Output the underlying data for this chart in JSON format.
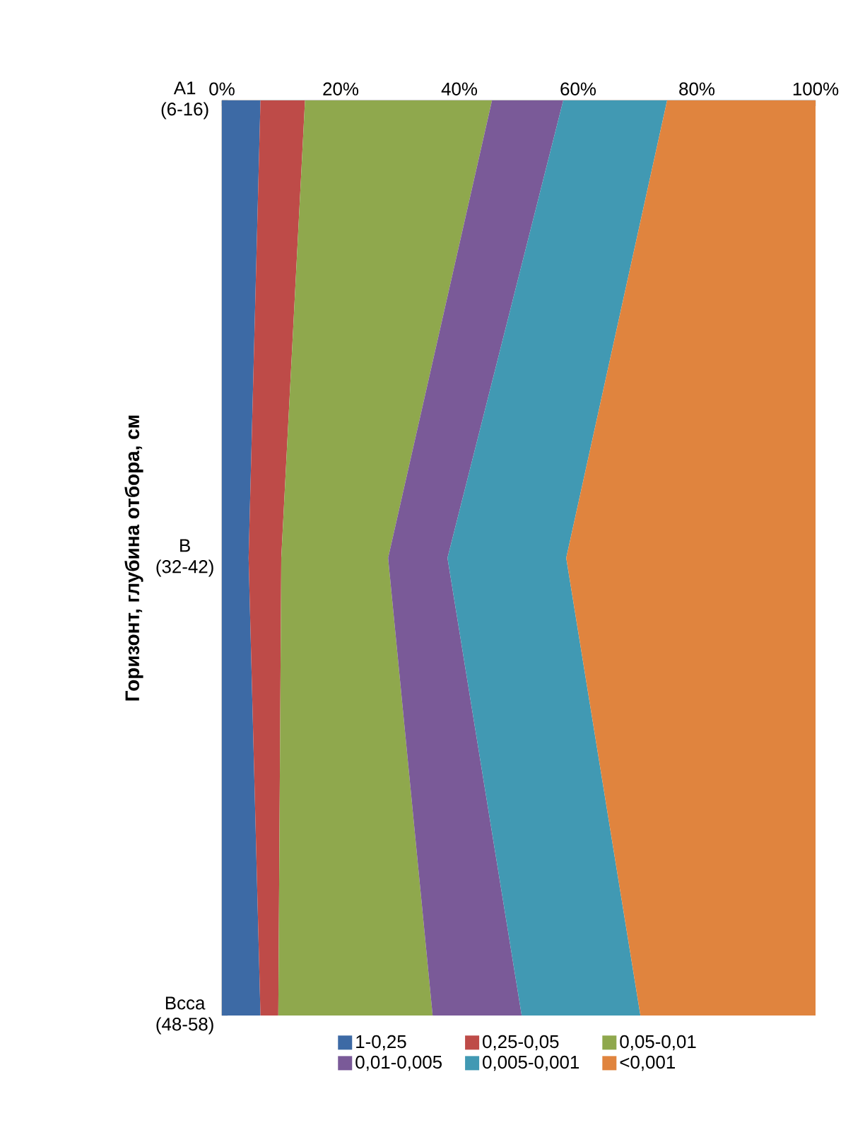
{
  "chart_data": {
    "type": "area",
    "orientation": "horizontal",
    "stacked": true,
    "ylabel": "Горизонт, глубина отбора, см",
    "categories": [
      "A1 (6-16)",
      "B (32-42)",
      "Bcca (48-58)"
    ],
    "xlim": [
      0,
      100
    ],
    "xticks": [
      {
        "value": 0,
        "label": "0%"
      },
      {
        "value": 20,
        "label": "20%"
      },
      {
        "value": 40,
        "label": "40%"
      },
      {
        "value": 60,
        "label": "60%"
      },
      {
        "value": 80,
        "label": "80%"
      },
      {
        "value": 100,
        "label": "100%"
      }
    ],
    "legend": "bottom",
    "series": [
      {
        "name": "1-0,25",
        "color": "#3d6aa5",
        "values": [
          6.5,
          4.5,
          6.5
        ]
      },
      {
        "name": "0,25-0,05",
        "color": "#be4b48",
        "values": [
          7.5,
          5.5,
          3
        ]
      },
      {
        "name": "0,05-0,01",
        "color": "#8fa84d",
        "values": [
          31.5,
          18,
          26
        ]
      },
      {
        "name": "0,01-0,005",
        "color": "#7a5a98",
        "values": [
          12,
          10,
          15
        ]
      },
      {
        "name": "0,005-0,001",
        "color": "#4199b3",
        "values": [
          17.5,
          20,
          20
        ]
      },
      {
        "name": "<0,001",
        "color": "#e0843e",
        "values": [
          25,
          42,
          29.5
        ]
      }
    ]
  }
}
